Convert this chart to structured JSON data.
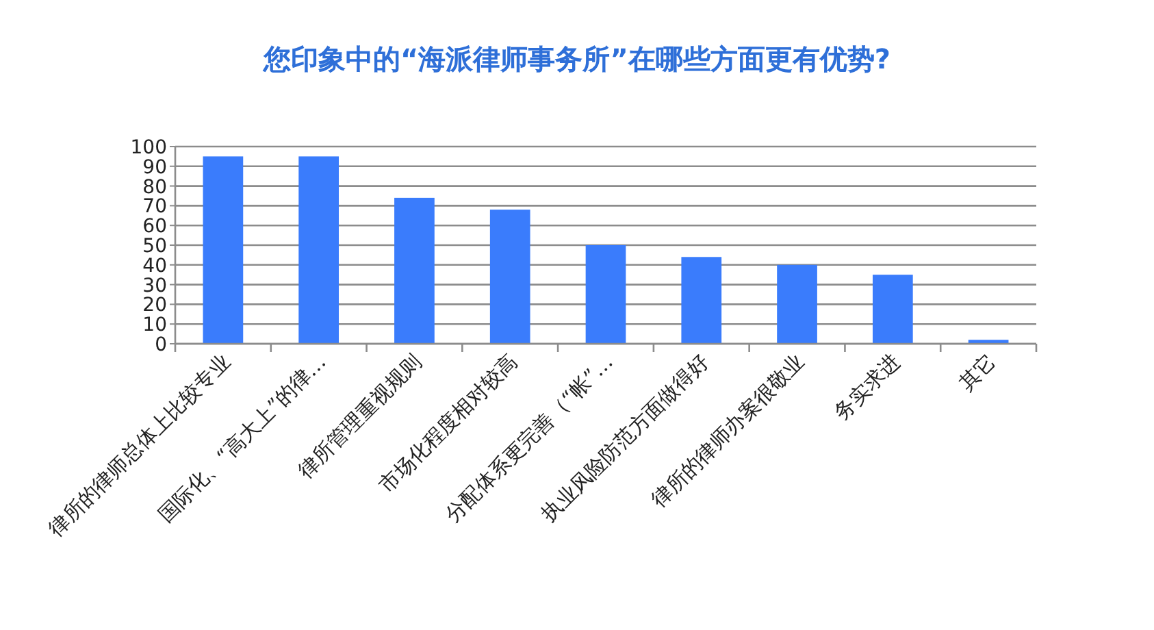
{
  "chart_data": {
    "type": "bar",
    "title": "您印象中的“海派律师事务所”在哪些方面更有优势?",
    "categories": [
      "律所的律师总体上比较专业",
      "国际化、“高大上”的律…",
      "律所管理重视规则",
      "市场化程度相对较高",
      "分配体系更完善（“帐”…",
      "执业风险防范方面做得好",
      "律所的律师办案很敬业",
      "务实求进",
      "其它"
    ],
    "values": [
      95,
      95,
      74,
      68,
      50,
      44,
      40,
      35,
      2
    ],
    "color": "#3a7cfc",
    "ylim": [
      0,
      100
    ],
    "yticks": [
      0,
      10,
      20,
      30,
      40,
      50,
      60,
      70,
      80,
      90,
      100
    ],
    "grid": "y"
  }
}
